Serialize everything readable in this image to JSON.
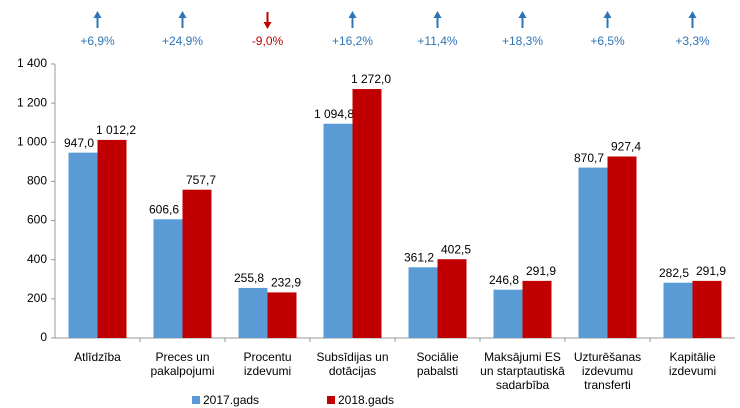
{
  "chart_data": {
    "type": "bar",
    "categories": [
      "Atlīdzība",
      "Preces un\npakalpojumi",
      "Procentu\nizdevumi",
      "Subsīdijas un\ndotācijas",
      "Sociālie\npabalsti",
      "Maksājumi ES\nun starptautiskā\nsadarbība",
      "Uzturēšanas\nizdevumu\ntransferti",
      "Kapitālie\nizdevumi"
    ],
    "series": [
      {
        "name": "2017.gads",
        "color": "#5b9bd5",
        "values": [
          947.0,
          606.6,
          255.8,
          1094.8,
          361.2,
          246.8,
          870.7,
          282.5
        ],
        "value_labels": [
          "947,0",
          "606,6",
          "255,8",
          "1 094,8",
          "361,2",
          "246,8",
          "870,7",
          "282,5"
        ]
      },
      {
        "name": "2018.gads",
        "color": "#c00000",
        "values": [
          1012.2,
          757.7,
          232.9,
          1272.0,
          402.5,
          291.9,
          927.4,
          291.9
        ],
        "value_labels": [
          "1 012,2",
          "757,7",
          "232,9",
          "1 272,0",
          "402,5",
          "291,9",
          "927,4",
          "291,9"
        ]
      }
    ],
    "annotations": [
      {
        "label": "+6,9%",
        "direction": "up",
        "color": "#2e75b6"
      },
      {
        "label": "+24,9%",
        "direction": "up",
        "color": "#2e75b6"
      },
      {
        "label": "-9,0%",
        "direction": "down",
        "color": "#c00000"
      },
      {
        "label": "+16,2%",
        "direction": "up",
        "color": "#2e75b6"
      },
      {
        "label": "+11,4%",
        "direction": "up",
        "color": "#2e75b6"
      },
      {
        "label": "+18,3%",
        "direction": "up",
        "color": "#2e75b6"
      },
      {
        "label": "+6,5%",
        "direction": "up",
        "color": "#2e75b6"
      },
      {
        "label": "+3,3%",
        "direction": "up",
        "color": "#2e75b6"
      }
    ],
    "ylim": [
      0,
      1400
    ],
    "yticks": [
      0,
      200,
      400,
      600,
      800,
      {
        "value": 1000,
        "label": "1 000"
      },
      {
        "value": 1200,
        "label": "1 200"
      },
      {
        "value": 1400,
        "label": "1 400"
      }
    ],
    "grid": false,
    "legend": "bottom"
  }
}
